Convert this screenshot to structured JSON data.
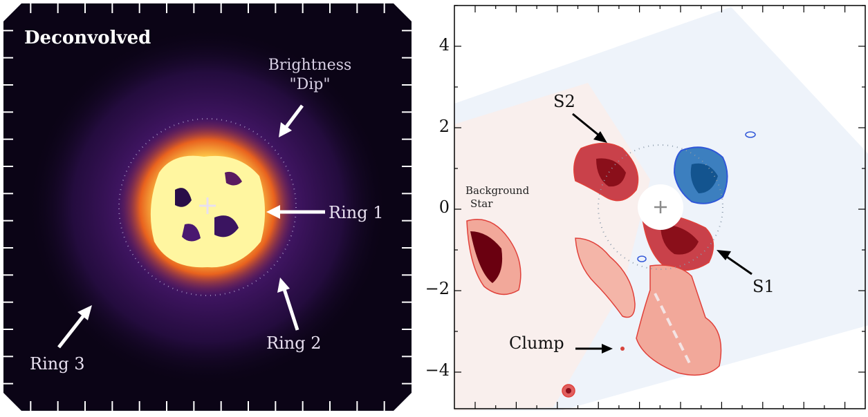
{
  "left_panel": {
    "title": "Deconvolved",
    "labels": {
      "dip_line1": "Brightness",
      "dip_line2": "\"Dip\"",
      "ring1": "Ring 1",
      "ring2": "Ring 2",
      "ring3": "Ring 3"
    },
    "colors": {
      "background": "#0b0416",
      "halo": "#3a1460",
      "core": "#fff6a0",
      "ring": "#f59b1a"
    }
  },
  "right_panel": {
    "labels": {
      "s1": "S1",
      "s2": "S2",
      "background_star_line1": "Background",
      "background_star_line2": "Star",
      "clump": "Clump"
    },
    "y_ticks": [
      "4",
      "2",
      "0",
      "−2",
      "−4"
    ],
    "colors": {
      "positive": "#a31820",
      "negative": "#1f5ea0",
      "contour_pos": "#e0403a",
      "contour_neg": "#2f56d8"
    }
  }
}
